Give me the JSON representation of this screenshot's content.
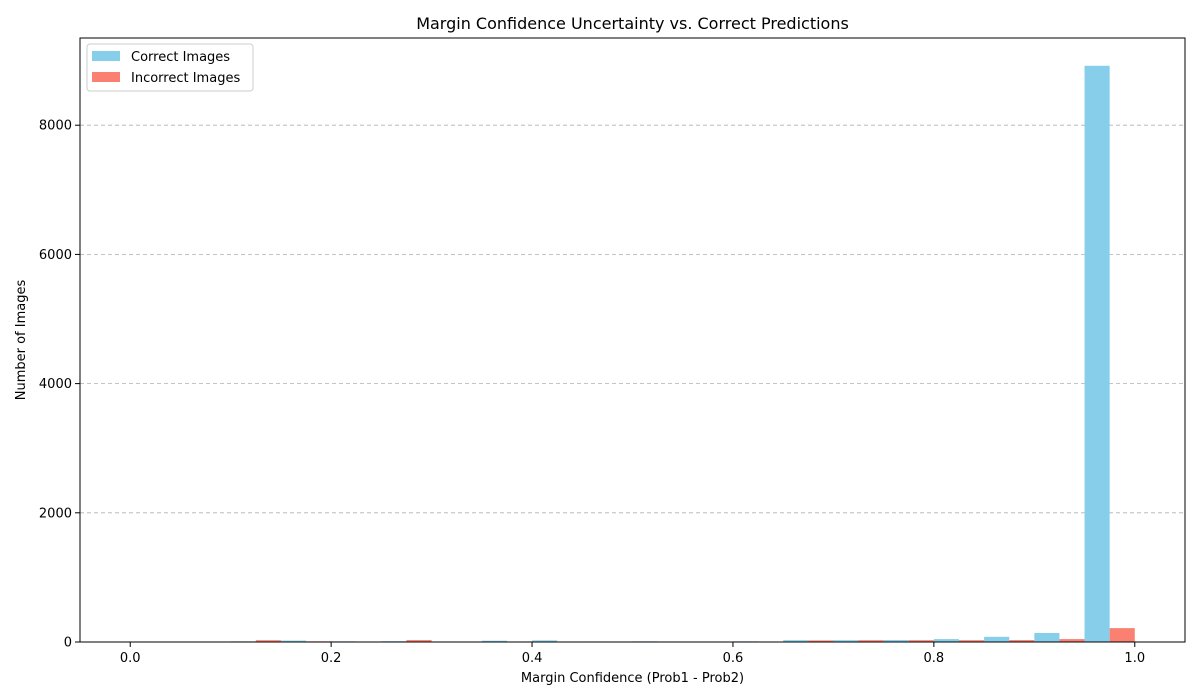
{
  "chart_data": {
    "type": "bar",
    "title": "Margin Confidence Uncertainty vs. Correct Predictions",
    "xlabel": "Margin Confidence (Prob1 - Prob2)",
    "ylabel": "Number of Images",
    "xlim": [
      -0.05,
      1.05
    ],
    "ylim": [
      0,
      9350
    ],
    "xticks": [
      0.0,
      0.2,
      0.4,
      0.6,
      0.8,
      1.0
    ],
    "xtick_labels": [
      "0.0",
      "0.2",
      "0.4",
      "0.6",
      "0.8",
      "1.0"
    ],
    "yticks": [
      0,
      2000,
      4000,
      6000,
      8000
    ],
    "ytick_labels": [
      "0",
      "2000",
      "4000",
      "6000",
      "8000"
    ],
    "grid": "y-dashed",
    "legend": "top-left",
    "bin_edges": [
      0.0,
      0.05,
      0.1,
      0.15,
      0.2,
      0.25,
      0.3,
      0.35,
      0.4,
      0.45,
      0.5,
      0.55,
      0.6,
      0.65,
      0.7,
      0.75,
      0.8,
      0.85,
      0.9,
      0.95,
      1.0
    ],
    "series": [
      {
        "name": "Correct Images",
        "color": "#87CEEB",
        "values": [
          8,
          7,
          10,
          22,
          10,
          12,
          8,
          20,
          25,
          8,
          10,
          6,
          10,
          28,
          28,
          30,
          45,
          80,
          140,
          8920
        ]
      },
      {
        "name": "Incorrect Images",
        "color": "#FA8072",
        "values": [
          6,
          5,
          28,
          10,
          6,
          30,
          6,
          8,
          6,
          6,
          8,
          5,
          5,
          25,
          28,
          28,
          28,
          30,
          45,
          215
        ]
      }
    ]
  }
}
